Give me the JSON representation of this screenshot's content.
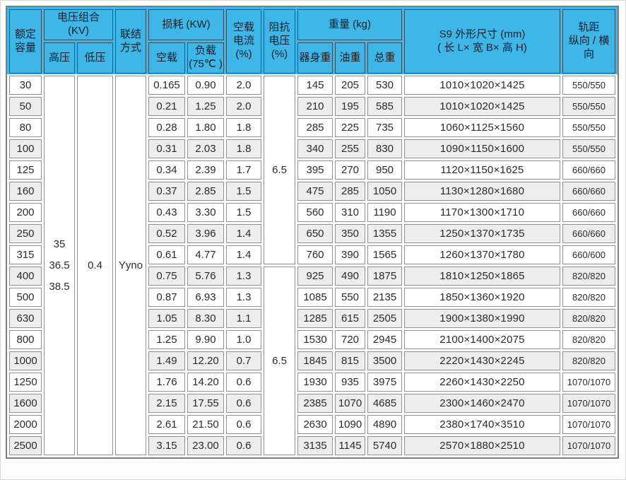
{
  "colors": {
    "header_bg": "#3fb6e8",
    "row_stripe": "#ededed",
    "cell_border": "#909090",
    "header_border": "#31505f",
    "outer_border": "#7e7e7e"
  },
  "table": {
    "header": {
      "rated_capacity": "额定\n容量",
      "voltage_combo": "电压组合 (KV)",
      "hv": "高压",
      "lv": "低压",
      "connection": "联结\n方式",
      "loss": "损耗 (KW)",
      "no_load_loss": "空载",
      "load_loss": "负载\n(75℃ )",
      "no_load_current": "空载\n电流\n(%)",
      "impedance_voltage": "阻抗\n电压\n(%)",
      "weight": "重量 (kg)",
      "body_weight": "器身重",
      "oil_weight": "油重",
      "total_weight": "总重",
      "dimensions": "S9 外形尺寸 (mm)\n( 长 L× 宽 B× 高 H)",
      "rail_gauge": "轨距\n纵向 / 横向"
    },
    "merged": {
      "hv": "35\n36.5\n38.5",
      "lv": "0.4",
      "connection": "Yyno",
      "impedance": [
        "6.5",
        "6.5"
      ]
    },
    "rows": [
      {
        "capacity": "30",
        "no_load_loss": "0.165",
        "load_loss": "0.90",
        "no_load_current": "2.0",
        "body_weight": "145",
        "oil_weight": "205",
        "total_weight": "530",
        "dimensions": "1010×1020×1425",
        "rail_gauge": "550/550"
      },
      {
        "capacity": "50",
        "no_load_loss": "0.21",
        "load_loss": "1.25",
        "no_load_current": "2.0",
        "body_weight": "210",
        "oil_weight": "195",
        "total_weight": "585",
        "dimensions": "1010×1020×1425",
        "rail_gauge": "550/550"
      },
      {
        "capacity": "80",
        "no_load_loss": "0.28",
        "load_loss": "1.80",
        "no_load_current": "1.8",
        "body_weight": "285",
        "oil_weight": "225",
        "total_weight": "735",
        "dimensions": "1060×1125×1560",
        "rail_gauge": "550/550"
      },
      {
        "capacity": "100",
        "no_load_loss": "0.31",
        "load_loss": "2.03",
        "no_load_current": "1.8",
        "body_weight": "340",
        "oil_weight": "255",
        "total_weight": "830",
        "dimensions": "1090×1150×1600",
        "rail_gauge": "550/550"
      },
      {
        "capacity": "125",
        "no_load_loss": "0.34",
        "load_loss": "2.39",
        "no_load_current": "1.7",
        "body_weight": "395",
        "oil_weight": "270",
        "total_weight": "950",
        "dimensions": "1120×1150×1625",
        "rail_gauge": "660/660"
      },
      {
        "capacity": "160",
        "no_load_loss": "0.37",
        "load_loss": "2.85",
        "no_load_current": "1.5",
        "body_weight": "475",
        "oil_weight": "285",
        "total_weight": "1050",
        "dimensions": "1130×1280×1680",
        "rail_gauge": "660/660"
      },
      {
        "capacity": "200",
        "no_load_loss": "0.43",
        "load_loss": "3.30",
        "no_load_current": "1.5",
        "body_weight": "560",
        "oil_weight": "310",
        "total_weight": "1190",
        "dimensions": "1170×1300×1710",
        "rail_gauge": "660/660"
      },
      {
        "capacity": "250",
        "no_load_loss": "0.52",
        "load_loss": "3.96",
        "no_load_current": "1.4",
        "body_weight": "650",
        "oil_weight": "350",
        "total_weight": "1355",
        "dimensions": "1250×1370×1735",
        "rail_gauge": "660/660"
      },
      {
        "capacity": "315",
        "no_load_loss": "0.61",
        "load_loss": "4.77",
        "no_load_current": "1.4",
        "body_weight": "760",
        "oil_weight": "390",
        "total_weight": "1565",
        "dimensions": "1260×1370×1780",
        "rail_gauge": "660/600"
      },
      {
        "capacity": "400",
        "no_load_loss": "0.75",
        "load_loss": "5.76",
        "no_load_current": "1.3",
        "body_weight": "925",
        "oil_weight": "490",
        "total_weight": "1875",
        "dimensions": "1810×1250×1865",
        "rail_gauge": "820/820"
      },
      {
        "capacity": "500",
        "no_load_loss": "0.87",
        "load_loss": "6.93",
        "no_load_current": "1.3",
        "body_weight": "1085",
        "oil_weight": "550",
        "total_weight": "2135",
        "dimensions": "1850×1360×1920",
        "rail_gauge": "820/820"
      },
      {
        "capacity": "630",
        "no_load_loss": "1.05",
        "load_loss": "8.30",
        "no_load_current": "1.1",
        "body_weight": "1285",
        "oil_weight": "615",
        "total_weight": "2505",
        "dimensions": "1900×1380×1990",
        "rail_gauge": "820/820"
      },
      {
        "capacity": "800",
        "no_load_loss": "1.25",
        "load_loss": "9.90",
        "no_load_current": "1.0",
        "body_weight": "1530",
        "oil_weight": "720",
        "total_weight": "2945",
        "dimensions": "2100×1400×2075",
        "rail_gauge": "820/820"
      },
      {
        "capacity": "1000",
        "no_load_loss": "1.49",
        "load_loss": "12.20",
        "no_load_current": "0.7",
        "body_weight": "1845",
        "oil_weight": "815",
        "total_weight": "3500",
        "dimensions": "2220×1430×2245",
        "rail_gauge": "820/820"
      },
      {
        "capacity": "1250",
        "no_load_loss": "1.76",
        "load_loss": "14.20",
        "no_load_current": "0.6",
        "body_weight": "1930",
        "oil_weight": "935",
        "total_weight": "3975",
        "dimensions": "2260×1430×2250",
        "rail_gauge": "1070/1070"
      },
      {
        "capacity": "1600",
        "no_load_loss": "2.15",
        "load_loss": "17.55",
        "no_load_current": "0.6",
        "body_weight": "2385",
        "oil_weight": "1070",
        "total_weight": "4685",
        "dimensions": "2300×1460×2470",
        "rail_gauge": "1070/1070"
      },
      {
        "capacity": "2000",
        "no_load_loss": "2.61",
        "load_loss": "21.50",
        "no_load_current": "0.6",
        "body_weight": "2630",
        "oil_weight": "1090",
        "total_weight": "4890",
        "dimensions": "2380×1740×3510",
        "rail_gauge": "1070/1070"
      },
      {
        "capacity": "2500",
        "no_load_loss": "3.15",
        "load_loss": "23.00",
        "no_load_current": "0.6",
        "body_weight": "3135",
        "oil_weight": "1145",
        "total_weight": "5740",
        "dimensions": "2570×1880×2510",
        "rail_gauge": "1070/1070"
      }
    ]
  }
}
